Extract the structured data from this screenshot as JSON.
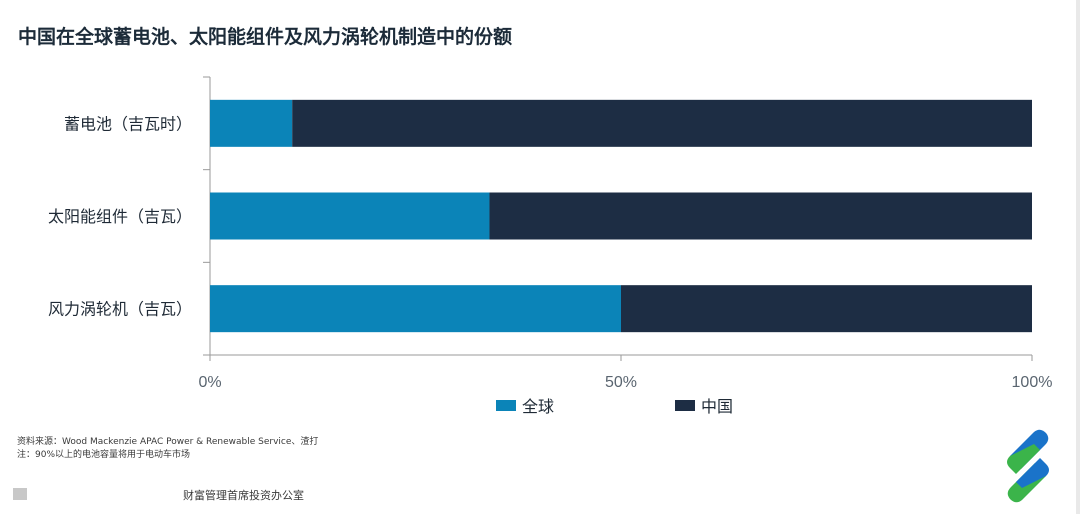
{
  "title": "中国在全球蓄电池、太阳能组件及风力涡轮机制造中的份额",
  "chart_data": {
    "type": "bar",
    "orientation": "horizontal",
    "stacked": true,
    "categories": [
      "蓄电池（吉瓦时）",
      "太阳能组件（吉瓦）",
      "风力涡轮机（吉瓦）"
    ],
    "series": [
      {
        "name": "全球",
        "values": [
          10,
          34,
          50
        ],
        "color": "#0b84b8"
      },
      {
        "name": "中国",
        "values": [
          90,
          66,
          50
        ],
        "color": "#1d2d44"
      }
    ],
    "xlim": [
      0,
      100
    ],
    "xticks": [
      0,
      50,
      100
    ],
    "xtick_labels": [
      "0%",
      "50%",
      "100%"
    ],
    "legend_position": "bottom",
    "grid": false
  },
  "notes": {
    "source": "资料来源：Wood Mackenzie APAC Power & Renewable Service、渣打",
    "note": "注：90%以上的电池容量将用于电动车市场"
  },
  "footer": {
    "office": "财富管理首席投资办公室"
  },
  "logo": {
    "icon": "standard-chartered-logo-icon",
    "blue": "#1a73c9",
    "green": "#3bb44a"
  }
}
